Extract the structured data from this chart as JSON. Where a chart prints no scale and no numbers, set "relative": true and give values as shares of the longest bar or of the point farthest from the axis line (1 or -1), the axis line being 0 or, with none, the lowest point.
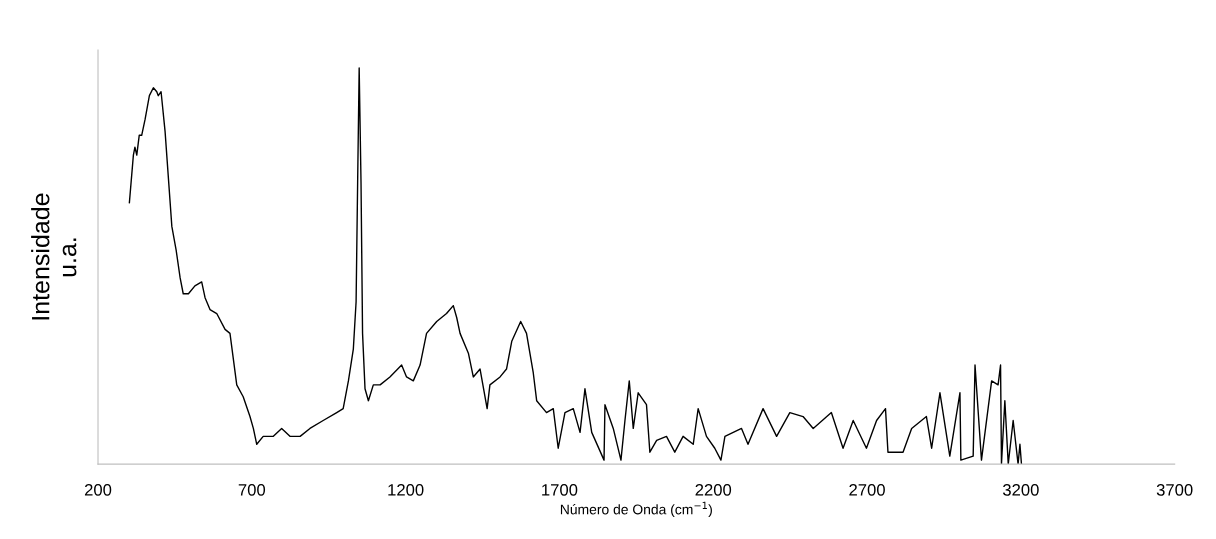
{
  "chart_data": {
    "type": "line",
    "relative": true,
    "xlabel": "Número de Onda (cm$^{−1}$)",
    "ylabel": "Intensidade\nu.a.",
    "xlim": [
      200,
      3700
    ],
    "xticks": [
      200,
      700,
      1200,
      1700,
      2200,
      2700,
      3200,
      3700
    ],
    "x": [
      302,
      315,
      320,
      326,
      334,
      342,
      353,
      367,
      380,
      391,
      396,
      405,
      418,
      440,
      454,
      467,
      477,
      494,
      515,
      537,
      548,
      564,
      586,
      613,
      629,
      651,
      672,
      694,
      705,
      716,
      737,
      770,
      797,
      824,
      857,
      889,
      932,
      976,
      997,
      1014,
      1030,
      1039,
      1044,
      1049,
      1055,
      1060,
      1068,
      1079,
      1095,
      1117,
      1149,
      1187,
      1203,
      1225,
      1247,
      1268,
      1301,
      1333,
      1355,
      1366,
      1377,
      1404,
      1420,
      1442,
      1465,
      1474,
      1507,
      1528,
      1545,
      1574,
      1593,
      1615,
      1626,
      1658,
      1680,
      1696,
      1718,
      1745,
      1767,
      1783,
      1805,
      1845,
      1848,
      1875,
      1900,
      1913,
      1927,
      1940,
      1956,
      1983,
      1994,
      2016,
      2048,
      2075,
      2102,
      2135,
      2151,
      2178,
      2205,
      2225,
      2238,
      2292,
      2313,
      2362,
      2406,
      2449,
      2492,
      2525,
      2584,
      2622,
      2655,
      2698,
      2731,
      2760,
      2768,
      2817,
      2845,
      2893,
      2910,
      2937,
      2969,
      3002,
      3005,
      3045,
      3051,
      3072,
      3105,
      3126,
      3134,
      3137,
      3148,
      3159,
      3175,
      3191,
      3197,
      3202
    ],
    "series": [
      {
        "color": "#000000",
        "values": [
          0.66,
          0.78,
          0.8,
          0.78,
          0.83,
          0.83,
          0.87,
          0.93,
          0.95,
          0.94,
          0.93,
          0.94,
          0.84,
          0.6,
          0.54,
          0.47,
          0.43,
          0.43,
          0.45,
          0.46,
          0.42,
          0.39,
          0.38,
          0.34,
          0.33,
          0.2,
          0.17,
          0.12,
          0.09,
          0.05,
          0.07,
          0.07,
          0.09,
          0.07,
          0.07,
          0.09,
          0.11,
          0.13,
          0.14,
          0.21,
          0.29,
          0.41,
          0.71,
          1.0,
          0.71,
          0.33,
          0.19,
          0.16,
          0.2,
          0.2,
          0.22,
          0.25,
          0.22,
          0.21,
          0.25,
          0.33,
          0.36,
          0.38,
          0.4,
          0.37,
          0.33,
          0.28,
          0.22,
          0.24,
          0.14,
          0.2,
          0.22,
          0.24,
          0.31,
          0.36,
          0.33,
          0.23,
          0.16,
          0.13,
          0.14,
          0.04,
          0.13,
          0.14,
          0.08,
          0.19,
          0.08,
          0.01,
          0.15,
          0.09,
          0.01,
          0.11,
          0.21,
          0.09,
          0.18,
          0.15,
          0.03,
          0.06,
          0.07,
          0.03,
          0.07,
          0.05,
          0.14,
          0.07,
          0.04,
          0.01,
          0.07,
          0.09,
          0.05,
          0.14,
          0.07,
          0.13,
          0.12,
          0.09,
          0.13,
          0.04,
          0.11,
          0.04,
          0.11,
          0.14,
          0.03,
          0.03,
          0.09,
          0.12,
          0.04,
          0.18,
          0.02,
          0.18,
          0.01,
          0.02,
          0.25,
          0.01,
          0.21,
          0.2,
          0.25,
          0.0,
          0.16,
          0.0,
          0.11,
          0.0,
          0.05,
          0.0
        ]
      }
    ]
  }
}
